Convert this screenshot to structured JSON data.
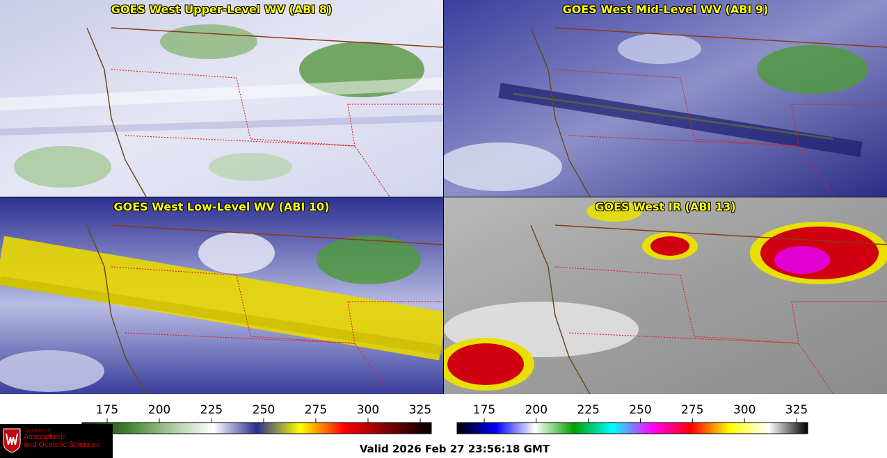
{
  "panels": [
    {
      "id": "p1",
      "title": "GOES West Upper-Level WV (ABI 8)"
    },
    {
      "id": "p2",
      "title": "GOES West Mid-Level WV (ABI 9)"
    },
    {
      "id": "p3",
      "title": "GOES West Low-Level WV (ABI 10)"
    },
    {
      "id": "p4",
      "title": "GOES West IR (ABI 13)"
    }
  ],
  "colorbars": {
    "wv_ticks": [
      "175",
      "200",
      "225",
      "250",
      "275",
      "300",
      "325"
    ],
    "ir_ticks": [
      "175",
      "200",
      "225",
      "250",
      "275",
      "300",
      "325"
    ],
    "colors": {
      "wv": [
        "#0a2a08",
        "#3f7e2c",
        "#a5c79a",
        "#ffffff",
        "#2a2d8f",
        "#ffff00",
        "#ff0000",
        "#7a0000",
        "#000000"
      ],
      "ir": [
        "#000000",
        "#0000ff",
        "#ffffff",
        "#00a000",
        "#00ffff",
        "#ff00ff",
        "#ff0000",
        "#ffff00",
        "#ffffff",
        "#000000"
      ]
    }
  },
  "logo": {
    "dept_line": "Department of",
    "line1": "Atmospheric",
    "line2": "and Oceanic Sciences"
  },
  "valid_text": "Valid 2026 Feb 27 23:56:18 GMT"
}
